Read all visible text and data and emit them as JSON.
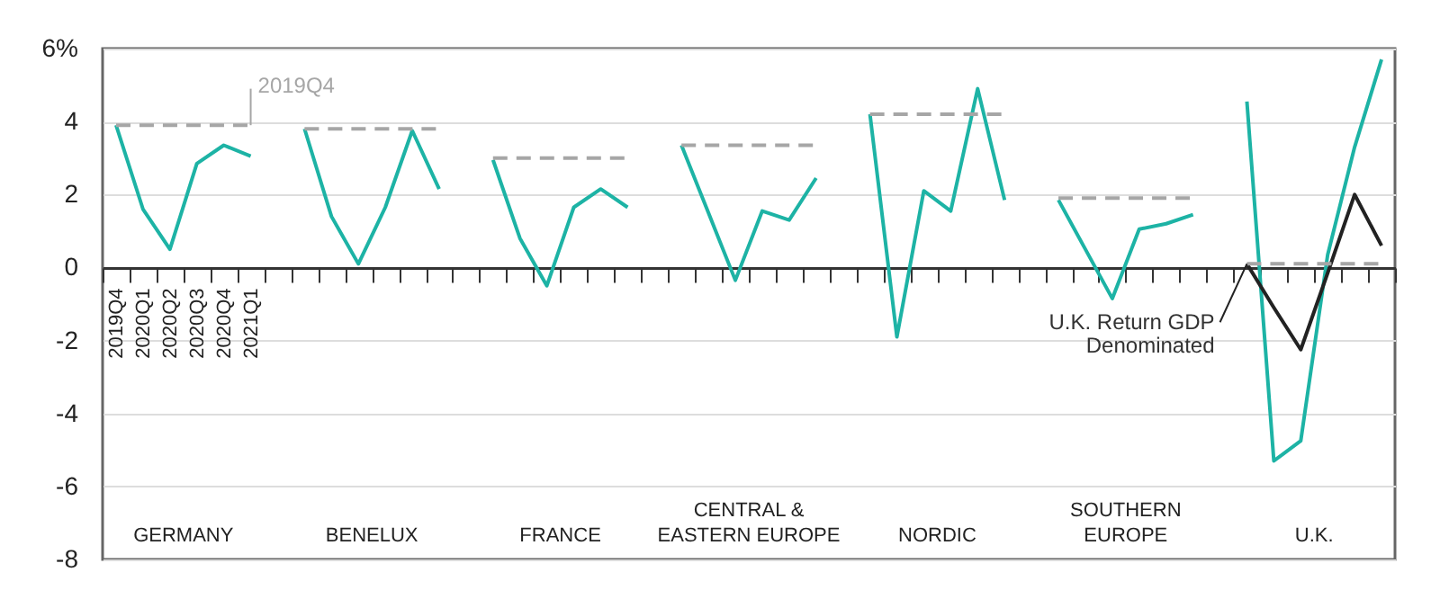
{
  "chart_data": {
    "type": "line",
    "categories": [
      "2019Q4",
      "2020Q1",
      "2020Q2",
      "2020Q3",
      "2020Q4",
      "2021Q1",
      null,
      null,
      null,
      null,
      null,
      null,
      null,
      null,
      null,
      null,
      null,
      null,
      null,
      null,
      null,
      null,
      null,
      null,
      null,
      null,
      null,
      null,
      null,
      null,
      null,
      null,
      null,
      null,
      null,
      null,
      null,
      null,
      null,
      null,
      null,
      null,
      null,
      null,
      null,
      null,
      null,
      null
    ],
    "series": [
      {
        "color": "#1db3a5",
        "values": [
          3.9,
          1.6,
          0.5,
          2.85,
          3.35,
          3.05,
          null,
          null,
          null,
          null,
          null,
          null,
          null,
          null,
          null,
          null,
          null,
          null,
          null,
          null,
          null,
          null,
          null,
          null,
          null,
          null,
          null,
          null,
          null,
          null,
          null,
          null,
          null,
          null,
          null,
          null,
          null,
          null,
          null,
          null,
          null,
          null,
          null,
          null,
          null,
          null,
          null,
          null
        ]
      },
      {
        "color": "#1db3a5",
        "values": [
          null,
          null,
          null,
          null,
          null,
          null,
          null,
          3.8,
          1.4,
          0.1,
          1.65,
          3.75,
          2.15,
          null,
          null,
          null,
          null,
          null,
          null,
          null,
          null,
          null,
          null,
          null,
          null,
          null,
          null,
          null,
          null,
          null,
          null,
          null,
          null,
          null,
          null,
          null,
          null,
          null,
          null,
          null,
          null,
          null,
          null,
          null,
          null,
          null,
          null,
          null
        ]
      },
      {
        "color": "#1db3a5",
        "values": [
          null,
          null,
          null,
          null,
          null,
          null,
          null,
          null,
          null,
          null,
          null,
          null,
          null,
          null,
          2.95,
          0.8,
          -0.5,
          1.65,
          2.15,
          1.65,
          null,
          null,
          null,
          null,
          null,
          null,
          null,
          null,
          null,
          null,
          null,
          null,
          null,
          null,
          null,
          null,
          null,
          null,
          null,
          null,
          null,
          null,
          null,
          null,
          null,
          null,
          null,
          null
        ]
      },
      {
        "color": "#1db3a5",
        "values": [
          null,
          null,
          null,
          null,
          null,
          null,
          null,
          null,
          null,
          null,
          null,
          null,
          null,
          null,
          null,
          null,
          null,
          null,
          null,
          null,
          null,
          3.35,
          1.5,
          -0.35,
          1.55,
          1.3,
          2.45,
          null,
          null,
          null,
          null,
          null,
          null,
          null,
          null,
          null,
          null,
          null,
          null,
          null,
          null,
          null,
          null,
          null,
          null,
          null,
          null,
          null
        ]
      },
      {
        "color": "#1db3a5",
        "values": [
          null,
          null,
          null,
          null,
          null,
          null,
          null,
          null,
          null,
          null,
          null,
          null,
          null,
          null,
          null,
          null,
          null,
          null,
          null,
          null,
          null,
          null,
          null,
          null,
          null,
          null,
          null,
          null,
          4.2,
          -1.9,
          2.1,
          1.55,
          4.9,
          1.85,
          null,
          null,
          null,
          null,
          null,
          null,
          null,
          null,
          null,
          null,
          null,
          null,
          null,
          null
        ]
      },
      {
        "color": "#1db3a5",
        "values": [
          null,
          null,
          null,
          null,
          null,
          null,
          null,
          null,
          null,
          null,
          null,
          null,
          null,
          null,
          null,
          null,
          null,
          null,
          null,
          null,
          null,
          null,
          null,
          null,
          null,
          null,
          null,
          null,
          null,
          null,
          null,
          null,
          null,
          null,
          null,
          1.85,
          0.5,
          -0.85,
          1.05,
          1.2,
          1.45,
          null,
          null,
          null,
          null,
          null,
          null,
          null
        ]
      },
      {
        "color": "#1db3a5",
        "values": [
          null,
          null,
          null,
          null,
          null,
          null,
          null,
          null,
          null,
          null,
          null,
          null,
          null,
          null,
          null,
          null,
          null,
          null,
          null,
          null,
          null,
          null,
          null,
          null,
          null,
          null,
          null,
          null,
          null,
          null,
          null,
          null,
          null,
          null,
          null,
          null,
          null,
          null,
          null,
          null,
          null,
          null,
          4.55,
          -5.3,
          -4.75,
          0.35,
          3.3,
          5.7
        ]
      },
      {
        "name": "U.K. Return GDP Denominated",
        "color": "#222222",
        "values": [
          null,
          null,
          null,
          null,
          null,
          null,
          null,
          null,
          null,
          null,
          null,
          null,
          null,
          null,
          null,
          null,
          null,
          null,
          null,
          null,
          null,
          null,
          null,
          null,
          null,
          null,
          null,
          null,
          null,
          null,
          null,
          null,
          null,
          null,
          null,
          null,
          null,
          null,
          null,
          null,
          null,
          null,
          0.1,
          -1.1,
          -2.25,
          -0.15,
          2.0,
          0.6
        ]
      },
      {
        "name": "2019Q4",
        "color": "#a6a6a6",
        "line_style": "dashed",
        "values": [
          3.9,
          3.9,
          3.9,
          3.9,
          3.9,
          3.9,
          null,
          3.8,
          3.8,
          3.8,
          3.8,
          3.8,
          3.8,
          null,
          3.0,
          3.0,
          3.0,
          3.0,
          3.0,
          3.0,
          null,
          3.35,
          3.35,
          3.35,
          3.35,
          3.35,
          3.35,
          null,
          4.2,
          4.2,
          4.2,
          4.2,
          4.2,
          4.2,
          null,
          1.9,
          1.9,
          1.9,
          1.9,
          1.9,
          1.9,
          null,
          0.1,
          0.1,
          0.1,
          0.1,
          0.1,
          0.1
        ]
      }
    ],
    "annotations": [
      "GERMANY",
      "BENELUX",
      "FRANCE",
      "CENTRAL & EASTERN EUROPE",
      "NORDIC",
      "SOUTHERN EUROPE",
      "U.K."
    ],
    "ylim": [
      -8,
      6
    ],
    "yticks": [
      {
        "value": 6,
        "label": "6%"
      },
      4,
      2,
      0,
      -2,
      -4,
      -6,
      -8
    ],
    "grid": "y"
  }
}
